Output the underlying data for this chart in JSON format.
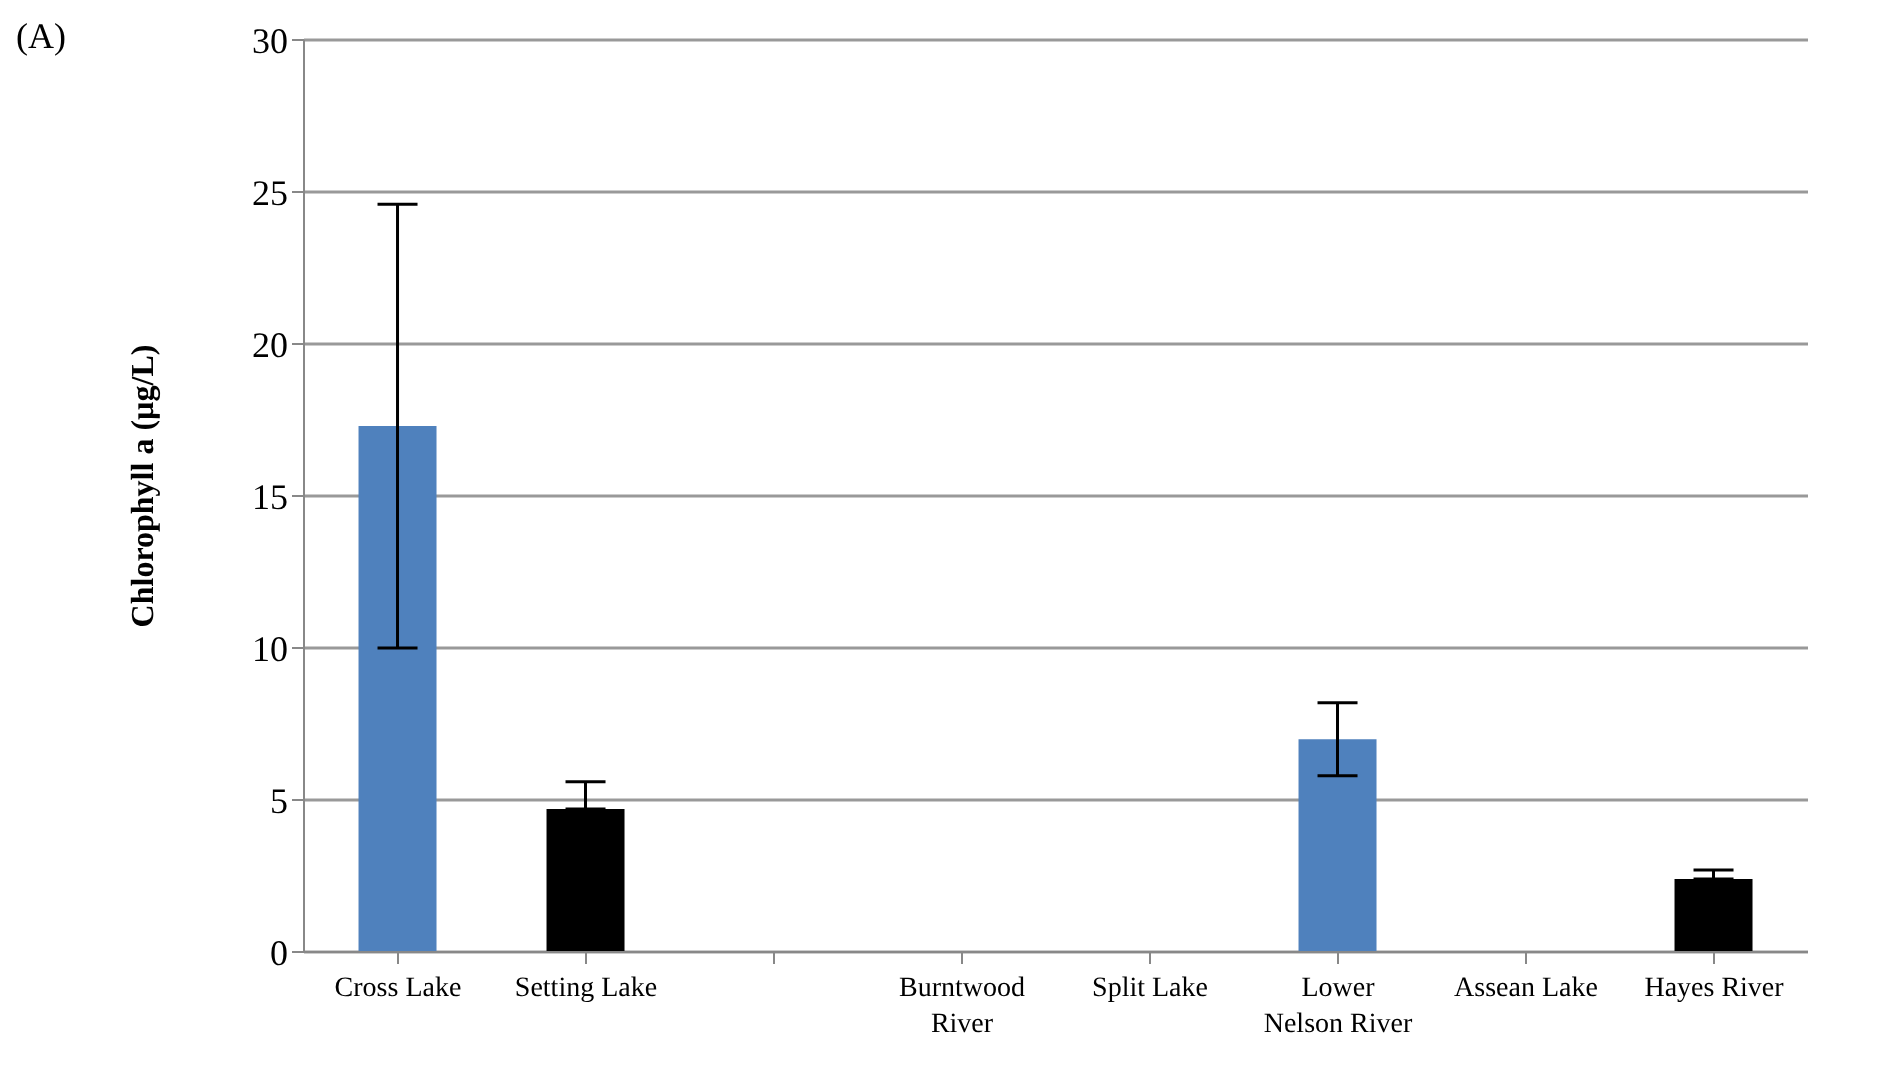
{
  "chart_data": {
    "type": "bar",
    "annotations": [
      "(A)"
    ],
    "ylabel": "Chlorophyll  a  (µg/L)",
    "categories": [
      "Cross Lake",
      "Setting Lake",
      null,
      "Burntwood River",
      "Split Lake",
      "Lower Nelson River",
      "Assean Lake",
      "Hayes River"
    ],
    "values": [
      17.3,
      4.7,
      null,
      null,
      null,
      7.0,
      null,
      2.4
    ],
    "colors": [
      "#4f81bd",
      "#000000",
      "#4f81bd",
      "#4f81bd",
      "#4f81bd",
      "#4f81bd",
      "#4f81bd",
      "#000000"
    ],
    "errors": [
      [
        10.0,
        24.6
      ],
      [
        4.7,
        5.6
      ],
      null,
      null,
      null,
      [
        5.8,
        8.2
      ],
      null,
      [
        2.4,
        2.7
      ]
    ],
    "ylim": [
      0,
      30
    ],
    "yticks": [
      0,
      5,
      10,
      15,
      20,
      25,
      30
    ],
    "grid": "y",
    "legend": false
  }
}
